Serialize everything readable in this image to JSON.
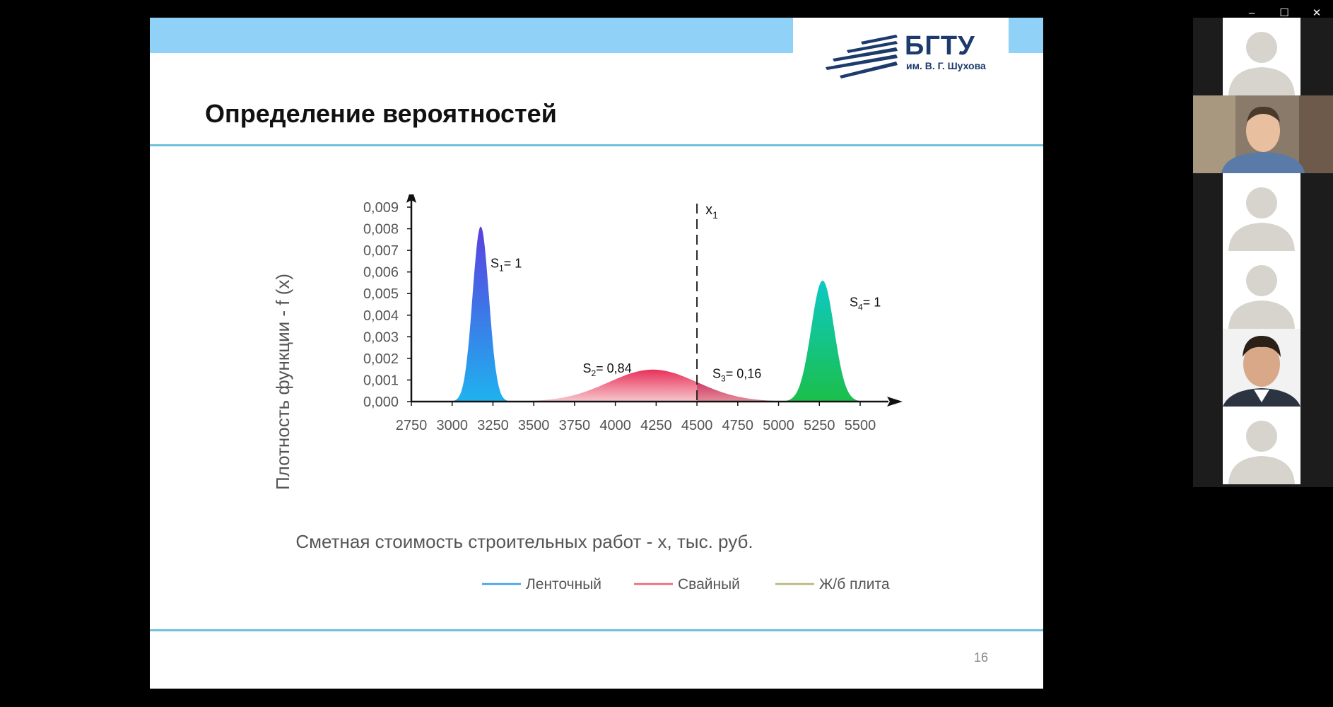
{
  "window_controls": {
    "minimize": "–",
    "maximize": "☐",
    "close": "✕"
  },
  "slide": {
    "logo_main": "БГТУ",
    "logo_sub": "им. В. Г. Шухова",
    "title": "Определение вероятностей",
    "page_number": "16"
  },
  "chart_data": {
    "type": "area",
    "ylabel": "Плотность функции - f (x)",
    "xlabel": "Сметная стоимость строительных работ - x, тыс. руб.",
    "xlim": [
      2750,
      5625
    ],
    "ylim": [
      0,
      0.009
    ],
    "x_ticks": [
      "2750",
      "3000",
      "3250",
      "3500",
      "3750",
      "4000",
      "4250",
      "4500",
      "4750",
      "5000",
      "5250",
      "5500"
    ],
    "y_ticks": [
      "0,000",
      "0,001",
      "0,002",
      "0,003",
      "0,004",
      "0,005",
      "0,006",
      "0,007",
      "0,008",
      "0,009"
    ],
    "series": [
      {
        "name": "Ленточный",
        "mean": 3175,
        "peak": 0.0081,
        "sd": 50,
        "color": "#3fa0e0"
      },
      {
        "name": "Свайный",
        "mean": 4230,
        "peak": 0.00148,
        "sd": 270,
        "color": "#e8667a"
      },
      {
        "name": "Ж/б плита",
        "mean": 5270,
        "peak": 0.0056,
        "sd": 70,
        "color": "#b5b57a"
      }
    ],
    "threshold": {
      "x": 4500,
      "label": "x",
      "label_sub": "1"
    },
    "annotations": [
      {
        "x": 3235,
        "y": 0.0062,
        "label": "S",
        "sub": "1",
        "rest": "= 1"
      },
      {
        "x": 3800,
        "y": 0.00135,
        "label": "S",
        "sub": "2",
        "rest": "= 0,84"
      },
      {
        "x": 4595,
        "y": 0.0011,
        "label": "S",
        "sub": "3",
        "rest": "= 0,16"
      },
      {
        "x": 5435,
        "y": 0.0044,
        "label": "S",
        "sub": "4",
        "rest": "= 1"
      }
    ],
    "legend_position": "bottom"
  },
  "participants": [
    {
      "name": "participant-1",
      "type": "placeholder"
    },
    {
      "name": "participant-2",
      "type": "video"
    },
    {
      "name": "participant-3",
      "type": "placeholder"
    },
    {
      "name": "participant-4",
      "type": "placeholder"
    },
    {
      "name": "participant-5",
      "type": "video"
    },
    {
      "name": "participant-6",
      "type": "placeholder"
    }
  ]
}
